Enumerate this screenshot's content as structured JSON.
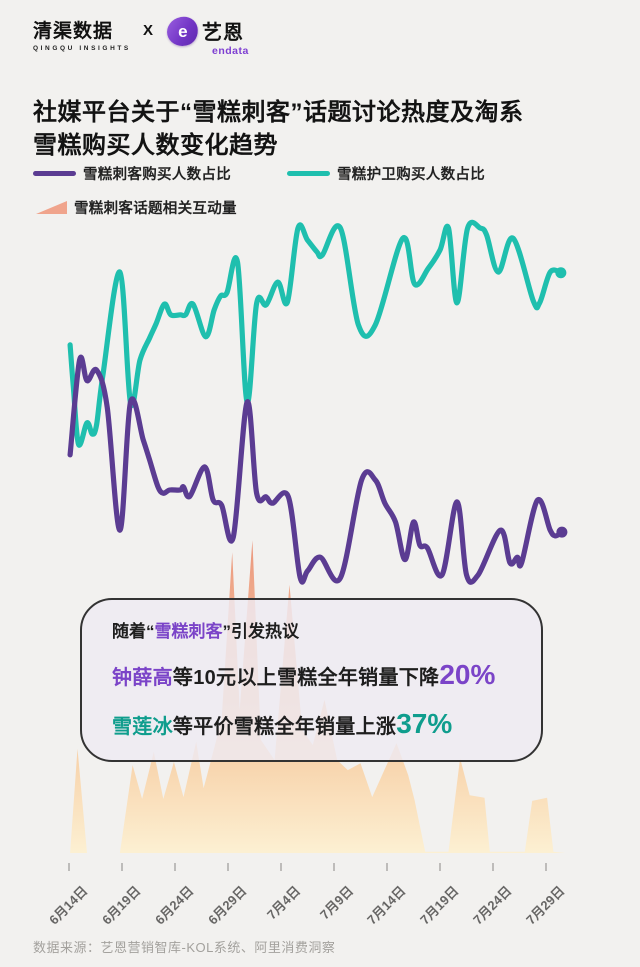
{
  "header": {
    "logo1_cn": "清渠数据",
    "logo1_en": "QINGQU INSIGHTS",
    "separator": "X",
    "logo2_e": "e",
    "logo2_cn": "艺恩",
    "logo2_en": "endata"
  },
  "title": {
    "line1": "社媒平台关于“雪糕刺客”话题讨论热度及淘系",
    "line2": "雪糕购买人数变化趋势"
  },
  "legend": {
    "items": [
      {
        "label": "雪糕刺客购买人数占比",
        "color": "#5b3c92",
        "type": "line"
      },
      {
        "label": "雪糕护卫购买人数占比",
        "color": "#1fbfae",
        "type": "line"
      },
      {
        "label": "雪糕刺客话题相关互动量",
        "color": "#f0a48c",
        "type": "area"
      }
    ]
  },
  "callout": {
    "line1_pre": "随着“",
    "line1_highlight": "雪糕刺客",
    "line1_post": "”引发热议",
    "line2_brand": "钟薛高",
    "line2_text": "等10元以上雪糕全年销量下降",
    "line2_value": "20%",
    "line3_brand": "雪莲冰",
    "line3_text": "等平价雪糕全年销量上涨",
    "line3_value": "37%",
    "colors": {
      "purple": "#7b44c8",
      "teal": "#0f9d8d"
    }
  },
  "footer": {
    "source": "数据来源：艺恩营销智库-KOL系统、阿里消费洞察"
  },
  "chart_data": {
    "type": "line",
    "note": "no numeric y-axis shown; values are relative index 0-100",
    "x_axis": {
      "tick_labels": [
        "6月14日",
        "6月19日",
        "6月24日",
        "6月29日",
        "7月4日",
        "7月9日",
        "7月14日",
        "7月19日",
        "7月24日",
        "7月29日"
      ],
      "tick_days": [
        0,
        5,
        10,
        15,
        20,
        25,
        30,
        35,
        40,
        45
      ],
      "day_range": [
        -0.5,
        47
      ]
    },
    "y_axis": {
      "range": [
        0,
        105
      ],
      "grid": false
    },
    "series": [
      {
        "name": "雪糕刺客话题相关互动量",
        "type": "area",
        "color_top": "#ea9176",
        "color_mid": "#f6c08e",
        "color_bottom": "#fdf0d0",
        "points": [
          [
            -0.5,
            0
          ],
          [
            0.1,
            0
          ],
          [
            0.8,
            16.6
          ],
          [
            1.7,
            0
          ],
          [
            4.8,
            0
          ],
          [
            6.0,
            14.0
          ],
          [
            6.9,
            8.6
          ],
          [
            8.0,
            16.1
          ],
          [
            8.9,
            8.6
          ],
          [
            9.9,
            14.5
          ],
          [
            10.8,
            8.9
          ],
          [
            12.0,
            17.7
          ],
          [
            12.7,
            10.3
          ],
          [
            14.4,
            21.2
          ],
          [
            15.4,
            47.9
          ],
          [
            16.1,
            22.8
          ],
          [
            17.3,
            49.8
          ],
          [
            18.1,
            18.0
          ],
          [
            19.4,
            14.8
          ],
          [
            20.8,
            42.7
          ],
          [
            22.0,
            19.6
          ],
          [
            23.0,
            17.2
          ],
          [
            24.1,
            24.4
          ],
          [
            25.3,
            14.8
          ],
          [
            26.3,
            13.2
          ],
          [
            27.5,
            14.3
          ],
          [
            28.6,
            8.9
          ],
          [
            30.9,
            17.5
          ],
          [
            32.0,
            12.4
          ],
          [
            32.6,
            8.4
          ],
          [
            33.6,
            0.2
          ],
          [
            35.8,
            0.2
          ],
          [
            36.9,
            15.1
          ],
          [
            37.8,
            9.2
          ],
          [
            39.2,
            8.8
          ],
          [
            39.7,
            0.2
          ],
          [
            43.0,
            0.2
          ],
          [
            43.7,
            8.3
          ],
          [
            45.1,
            8.8
          ],
          [
            45.7,
            0.2
          ],
          [
            46.8,
            0
          ]
        ]
      },
      {
        "name": "雪糕护卫购买人数占比",
        "type": "line",
        "color": "#1fbfae",
        "end_dot": true,
        "points": [
          [
            0.1,
            80.9
          ],
          [
            0.4,
            74.5
          ],
          [
            0.9,
            65.1
          ],
          [
            1.7,
            68.5
          ],
          [
            2.2,
            66.7
          ],
          [
            2.6,
            68.2
          ],
          [
            3.2,
            76.1
          ],
          [
            4.8,
            92.5
          ],
          [
            5.8,
            71.7
          ],
          [
            6.7,
            78.5
          ],
          [
            7.6,
            82.0
          ],
          [
            8.2,
            84.2
          ],
          [
            9.0,
            87.4
          ],
          [
            9.6,
            85.7
          ],
          [
            10.5,
            85.7
          ],
          [
            11.0,
            85.7
          ],
          [
            11.7,
            87.4
          ],
          [
            12.9,
            82.2
          ],
          [
            13.7,
            86.5
          ],
          [
            14.3,
            88.7
          ],
          [
            14.9,
            89.2
          ],
          [
            15.9,
            94.1
          ],
          [
            16.8,
            71.8
          ],
          [
            17.7,
            87.5
          ],
          [
            18.6,
            87.3
          ],
          [
            19.7,
            90.9
          ],
          [
            20.6,
            87.7
          ],
          [
            21.6,
            99.5
          ],
          [
            22.5,
            97.6
          ],
          [
            23.4,
            95.7
          ],
          [
            23.9,
            95.2
          ],
          [
            25.6,
            99.5
          ],
          [
            27.3,
            84.1
          ],
          [
            28.9,
            84.1
          ],
          [
            31.5,
            97.9
          ],
          [
            32.6,
            90.6
          ],
          [
            33.9,
            93.1
          ],
          [
            35.0,
            96.0
          ],
          [
            35.8,
            99.5
          ],
          [
            36.6,
            87.6
          ],
          [
            37.6,
            99.5
          ],
          [
            38.8,
            99.5
          ],
          [
            39.4,
            98.4
          ],
          [
            40.5,
            92.5
          ],
          [
            41.9,
            97.9
          ],
          [
            43.8,
            87.9
          ],
          [
            44.4,
            87.6
          ],
          [
            45.4,
            92.5
          ],
          [
            46.4,
            92.4
          ]
        ]
      },
      {
        "name": "雪糕刺客购买人数占比",
        "type": "line",
        "color": "#5b3c92",
        "end_dot": true,
        "points": [
          [
            0.1,
            63.4
          ],
          [
            1.0,
            78.5
          ],
          [
            1.7,
            75.2
          ],
          [
            2.6,
            76.9
          ],
          [
            3.6,
            71.0
          ],
          [
            4.8,
            51.4
          ],
          [
            5.8,
            71.8
          ],
          [
            7.0,
            65.8
          ],
          [
            7.6,
            62.6
          ],
          [
            8.4,
            58.3
          ],
          [
            8.9,
            57.3
          ],
          [
            9.5,
            57.8
          ],
          [
            10.5,
            57.8
          ],
          [
            10.8,
            58.3
          ],
          [
            11.4,
            56.8
          ],
          [
            12.8,
            61.5
          ],
          [
            13.6,
            56.2
          ],
          [
            14.4,
            55.4
          ],
          [
            15.5,
            50.3
          ],
          [
            16.8,
            71.8
          ],
          [
            17.7,
            57.3
          ],
          [
            18.6,
            56.7
          ],
          [
            19.2,
            55.7
          ],
          [
            20.7,
            56.7
          ],
          [
            21.8,
            43.9
          ],
          [
            22.5,
            44.9
          ],
          [
            23.7,
            47.1
          ],
          [
            25.6,
            43.8
          ],
          [
            27.6,
            59.4
          ],
          [
            28.9,
            59.4
          ],
          [
            29.8,
            55.7
          ],
          [
            30.8,
            52.7
          ],
          [
            31.7,
            46.7
          ],
          [
            32.5,
            52.7
          ],
          [
            33.1,
            49.0
          ],
          [
            33.8,
            48.6
          ],
          [
            35.2,
            44.3
          ],
          [
            36.6,
            55.9
          ],
          [
            37.5,
            44.3
          ],
          [
            38.6,
            44.3
          ],
          [
            40.7,
            51.4
          ],
          [
            41.6,
            46.2
          ],
          [
            42.3,
            47.1
          ],
          [
            42.7,
            46.2
          ],
          [
            44.2,
            56.2
          ],
          [
            45.4,
            51.4
          ],
          [
            45.9,
            50.5
          ],
          [
            46.5,
            51.1
          ]
        ]
      }
    ]
  }
}
